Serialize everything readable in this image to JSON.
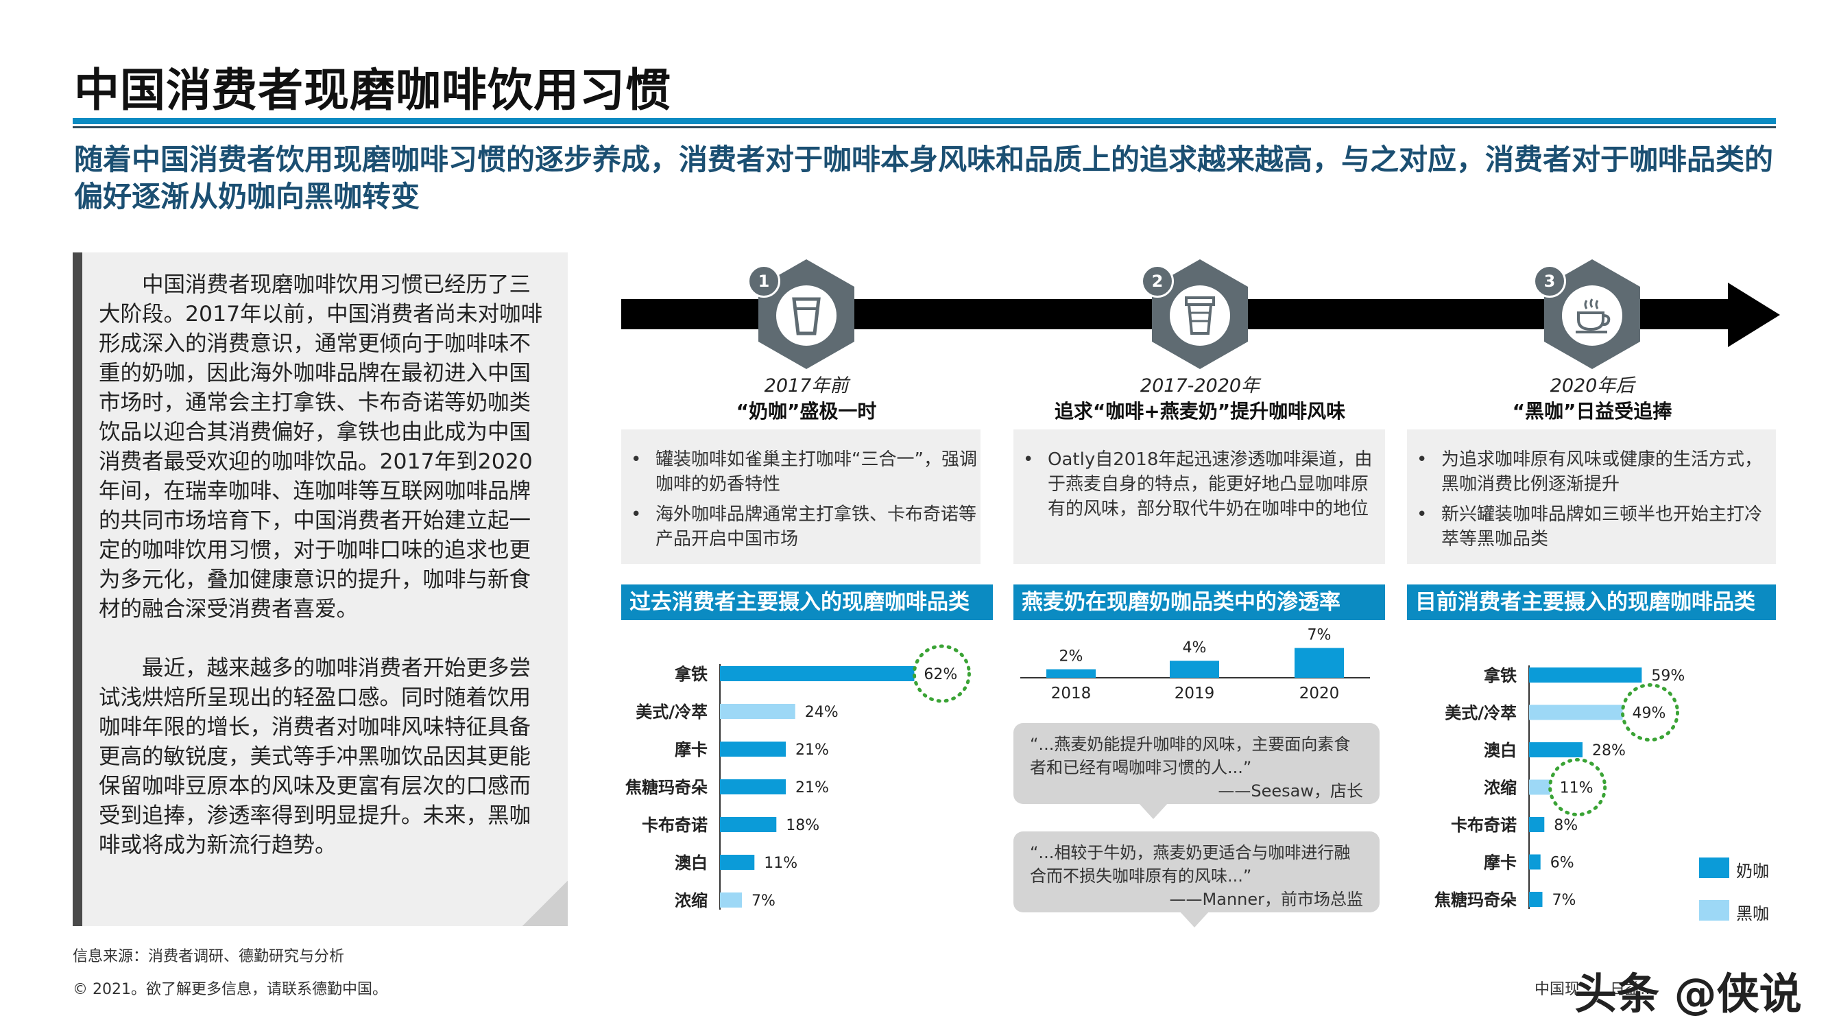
{
  "title": "中国消费者现磨咖啡饮用习惯",
  "subtitle": "随着中国消费者饮用现磨咖啡习惯的逐步养成，消费者对于咖啡本身风味和品质上的追求越来越高，与之对应，消费者对于咖啡品类的偏好逐渐从奶咖向黑咖转变",
  "left_panel": {
    "paragraph1": "中国消费者现磨咖啡饮用习惯已经历了三大阶段。2017年以前，中国消费者尚未对咖啡形成深入的消费意识，通常更倾向于咖啡味不重的奶咖，因此海外咖啡品牌在最初进入中国市场时，通常会主打拿铁、卡布奇诺等奶咖类饮品以迎合其消费偏好，拿铁也由此成为中国消费者最受欢迎的咖啡饮品。2017年到2020年间，在瑞幸咖啡、连咖啡等互联网咖啡品牌的共同市场培育下，中国消费者开始建立起一定的咖啡饮用习惯，对于咖啡口味的追求也更为多元化，叠加健康意识的提升，咖啡与新食材的融合深受消费者喜爱。",
    "paragraph2": "最近，越来越多的咖啡消费者开始更多尝试浅烘焙所呈现出的轻盈口感。同时随着饮用咖啡年限的增长，消费者对咖啡风味特征具备更高的敏锐度，美式等手冲黑咖饮品因其更能保留咖啡豆原本的风味及更富有层次的口感而受到追捧，渗透率得到明显提升。未来，黑咖啡或将成为新流行趋势。"
  },
  "stages": [
    {
      "num": "1",
      "year": "2017年前",
      "name": "“奶咖”盛极一时",
      "icon": "cup-icon",
      "bullets": [
        "罐装咖啡如雀巢主打咖啡“三合一”，强调咖啡的奶香特性",
        "海外咖啡品牌通常主打拿铁、卡布奇诺等产品开启中国市场"
      ]
    },
    {
      "num": "2",
      "year": "2017-2020年",
      "name": "追求“咖啡+燕麦奶”提升咖啡风味",
      "icon": "takeaway-cup-icon",
      "bullets": [
        "Oatly自2018年起迅速渗透咖啡渠道，由于燕麦自身的特点，能更好地凸显咖啡原有的风味，部分取代牛奶在咖啡中的地位"
      ]
    },
    {
      "num": "3",
      "year": "2020年后",
      "name": "“黑咖”日益受追捧",
      "icon": "hot-coffee-icon",
      "bullets": [
        "为追求咖啡原有风味或健康的生活方式，黑咖消费比例逐渐提升",
        "新兴罐装咖啡品牌如三顿半也开始主打冷萃等黑咖品类"
      ]
    }
  ],
  "section_headers": [
    "过去消费者主要摄入的现磨咖啡品类",
    "燕麦奶在现磨奶咖品类中的渗透率",
    "目前消费者主要摄入的现磨咖啡品类"
  ],
  "quotes": [
    {
      "text": "“...燕麦奶能提升咖啡的风味，主要面向素食者和已经有喝咖啡习惯的人...”",
      "source": "——Seesaw，店长"
    },
    {
      "text": "“...相较于牛奶，燕麦奶更适合与咖啡进行融合而不损失咖啡原有的风味...”",
      "source": "——Manner，前市场总监"
    }
  ],
  "legend": {
    "milk": "奶咖",
    "black": "黑咖"
  },
  "colors": {
    "milk": "#0b9bd8",
    "black": "#9dd8f6",
    "highlight_circle": "#3aa335",
    "header": "#0b8bc2"
  },
  "source": "信息来源：消费者调研、德勤研究与分析",
  "copyright": "© 2021。欲了解更多信息，请联系德勤中国。",
  "footer_right": "中国现……日益…",
  "watermark": "头条 @侠说",
  "chart_data": [
    {
      "type": "bar",
      "orientation": "horizontal",
      "categories": [
        "拿铁",
        "美式/冷萃",
        "摩卡",
        "焦糖玛奇朵",
        "卡布奇诺",
        "澳白",
        "浓缩"
      ],
      "values": [
        62,
        24,
        21,
        21,
        18,
        11,
        7
      ],
      "labels": [
        "62%",
        "24%",
        "21%",
        "21%",
        "18%",
        "11%",
        "7%"
      ],
      "kind": [
        "milk",
        "black",
        "milk",
        "milk",
        "milk",
        "milk",
        "black"
      ],
      "highlighted": [
        "拿铁"
      ],
      "xlim": [
        0,
        70
      ]
    },
    {
      "type": "bar",
      "categories": [
        "2018",
        "2019",
        "2020"
      ],
      "values": [
        2,
        4,
        7
      ],
      "labels": [
        "2%",
        "4%",
        "7%"
      ],
      "ylim": [
        0,
        10
      ]
    },
    {
      "type": "bar",
      "orientation": "horizontal",
      "categories": [
        "拿铁",
        "美式/冷萃",
        "澳白",
        "浓缩",
        "卡布奇诺",
        "摩卡",
        "焦糖玛奇朵"
      ],
      "values": [
        59,
        49,
        28,
        11,
        8,
        6,
        7
      ],
      "labels": [
        "59%",
        "49%",
        "28%",
        "11%",
        "8%",
        "6%",
        "7%"
      ],
      "kind": [
        "milk",
        "black",
        "milk",
        "black",
        "milk",
        "milk",
        "milk"
      ],
      "highlighted": [
        "美式/冷萃",
        "浓缩"
      ],
      "xlim": [
        0,
        70
      ]
    }
  ]
}
